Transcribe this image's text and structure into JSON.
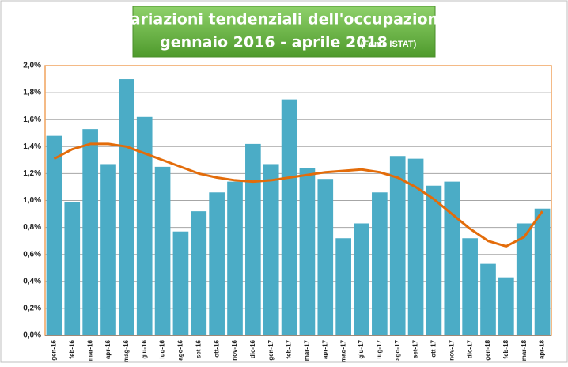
{
  "chart_data": {
    "type": "bar",
    "title": "Variazioni  tendenziali dell'occupazione",
    "subtitle": "gennaio 2016 -  aprile 2018",
    "source": "(Fonte ISTAT)",
    "categories": [
      "gen-16",
      "feb-16",
      "mar-16",
      "apr-16",
      "mag-16",
      "giu-16",
      "lug-16",
      "ago-16",
      "set-16",
      "ott-16",
      "nov-16",
      "dic-16",
      "gen-17",
      "feb-17",
      "mar-17",
      "apr-17",
      "mag-17",
      "giu-17",
      "lug-17",
      "ago-17",
      "set-17",
      "ott-17",
      "nov-17",
      "dic-17",
      "gen-18",
      "feb-18",
      "mar-18",
      "apr-18"
    ],
    "values": [
      1.48,
      0.99,
      1.53,
      1.27,
      1.9,
      1.62,
      1.25,
      0.77,
      0.92,
      1.06,
      1.14,
      1.42,
      1.27,
      1.75,
      1.24,
      1.16,
      0.72,
      0.83,
      1.06,
      1.33,
      1.31,
      1.11,
      1.14,
      0.72,
      0.53,
      0.43,
      0.83,
      0.94
    ],
    "color": "#4bacc6",
    "trend_values": [
      1.31,
      1.38,
      1.42,
      1.42,
      1.4,
      1.35,
      1.3,
      1.25,
      1.2,
      1.17,
      1.15,
      1.14,
      1.15,
      1.17,
      1.19,
      1.21,
      1.22,
      1.23,
      1.21,
      1.17,
      1.1,
      1.01,
      0.9,
      0.79,
      0.7,
      0.66,
      0.73,
      0.92
    ],
    "trend_color": "#e36c0a",
    "ylim": [
      0,
      2.0
    ],
    "yticks": [
      {
        "value": 0,
        "label": "0,0%"
      },
      {
        "value": 0.2,
        "label": "0,2%"
      },
      {
        "value": 0.4,
        "label": "0,4%"
      },
      {
        "value": 0.6,
        "label": "0,6%"
      },
      {
        "value": 0.8,
        "label": "0,8%"
      },
      {
        "value": 1.0,
        "label": "1,0%"
      },
      {
        "value": 1.2,
        "label": "1,2%"
      },
      {
        "value": 1.4,
        "label": "1,4%"
      },
      {
        "value": 1.6,
        "label": "1,6%"
      },
      {
        "value": 1.8,
        "label": "1,8%"
      },
      {
        "value": 2.0,
        "label": "2,0%"
      }
    ],
    "grid": true
  }
}
